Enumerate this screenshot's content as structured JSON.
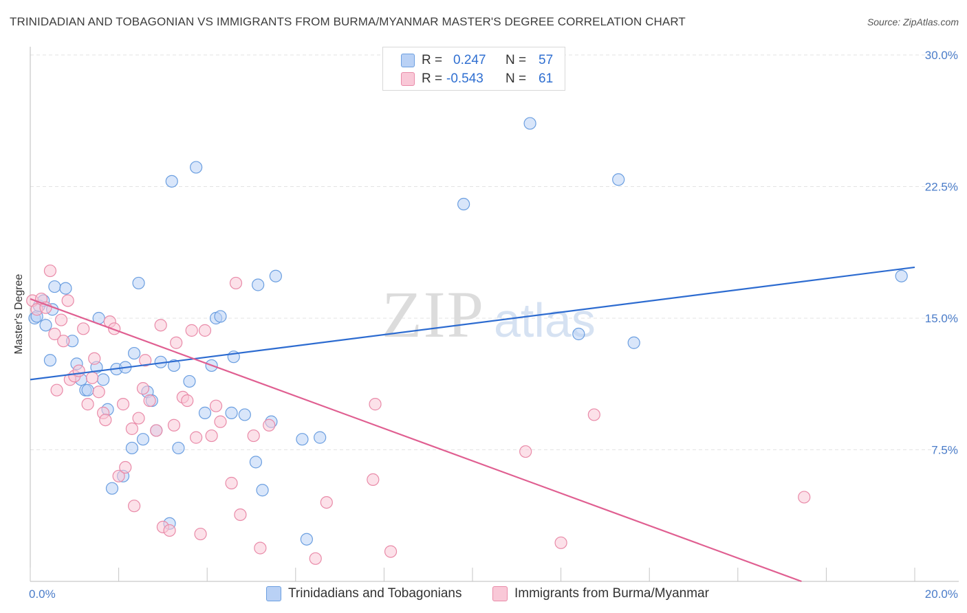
{
  "title": "TRINIDADIAN AND TOBAGONIAN VS IMMIGRANTS FROM BURMA/MYANMAR MASTER'S DEGREE CORRELATION CHART",
  "source": "Source: ZipAtlas.com",
  "watermark": "ZIPatlas",
  "legend": {
    "series1": {
      "r_label": "R =",
      "r_value": "0.247",
      "n_label": "N =",
      "n_value": "57"
    },
    "series2": {
      "r_label": "R =",
      "r_value": "-0.543",
      "n_label": "N =",
      "n_value": "61"
    }
  },
  "colors": {
    "blue_fill": "#b9d1f5",
    "blue_stroke": "#6a9ee0",
    "blue_line": "#2c6bd0",
    "pink_fill": "#f9c8d7",
    "pink_stroke": "#e98aa8",
    "pink_line": "#e05f91",
    "tick_text": "#4a7cc9"
  },
  "chart_data": {
    "type": "scatter",
    "xlabel": "",
    "ylabel": "Master's Degree",
    "xlim": [
      0,
      20
    ],
    "ylim": [
      0,
      30
    ],
    "x_tick_labels": [
      "0.0%",
      "20.0%"
    ],
    "y_ticks": [
      7.5,
      15.0,
      22.5,
      30.0
    ],
    "y_tick_labels": [
      "7.5%",
      "15.0%",
      "22.5%",
      "30.0%"
    ],
    "grid": true,
    "series": [
      {
        "name": "Trinidadians and Tobagonians",
        "color": "#b9d1f5",
        "trend": {
          "x": [
            0,
            20
          ],
          "y": [
            11.5,
            17.9
          ]
        },
        "points": [
          [
            0.1,
            15.0
          ],
          [
            0.15,
            15.1
          ],
          [
            0.2,
            15.7
          ],
          [
            0.3,
            16.0
          ],
          [
            0.35,
            14.6
          ],
          [
            0.45,
            12.6
          ],
          [
            0.55,
            16.8
          ],
          [
            0.8,
            16.7
          ],
          [
            0.95,
            13.7
          ],
          [
            1.05,
            12.4
          ],
          [
            1.15,
            11.5
          ],
          [
            1.25,
            10.9
          ],
          [
            1.3,
            10.9
          ],
          [
            1.5,
            12.2
          ],
          [
            1.55,
            15.0
          ],
          [
            1.65,
            11.5
          ],
          [
            1.75,
            9.8
          ],
          [
            1.85,
            5.3
          ],
          [
            1.95,
            12.1
          ],
          [
            2.1,
            6.0
          ],
          [
            2.15,
            12.2
          ],
          [
            2.3,
            7.6
          ],
          [
            2.35,
            13.0
          ],
          [
            2.45,
            17.0
          ],
          [
            2.55,
            8.1
          ],
          [
            2.65,
            10.8
          ],
          [
            2.75,
            10.3
          ],
          [
            2.85,
            8.6
          ],
          [
            2.95,
            12.5
          ],
          [
            3.15,
            3.3
          ],
          [
            3.2,
            22.8
          ],
          [
            3.25,
            12.3
          ],
          [
            3.35,
            7.6
          ],
          [
            3.6,
            11.4
          ],
          [
            3.75,
            23.6
          ],
          [
            3.95,
            9.6
          ],
          [
            4.1,
            12.3
          ],
          [
            4.2,
            15.0
          ],
          [
            4.3,
            15.1
          ],
          [
            4.55,
            9.6
          ],
          [
            4.6,
            12.8
          ],
          [
            4.85,
            9.5
          ],
          [
            5.1,
            6.8
          ],
          [
            5.15,
            16.9
          ],
          [
            5.25,
            5.2
          ],
          [
            5.45,
            9.1
          ],
          [
            5.55,
            17.4
          ],
          [
            6.15,
            8.1
          ],
          [
            6.25,
            2.4
          ],
          [
            6.55,
            8.2
          ],
          [
            9.8,
            21.5
          ],
          [
            11.3,
            26.1
          ],
          [
            12.4,
            14.1
          ],
          [
            13.3,
            22.9
          ],
          [
            13.65,
            13.6
          ],
          [
            19.7,
            17.4
          ],
          [
            0.5,
            15.5
          ]
        ]
      },
      {
        "name": "Immigrants from Burma/Myanmar",
        "color": "#f9c8d7",
        "trend": {
          "x": [
            0,
            17.44
          ],
          "y": [
            16.1,
            0.0
          ]
        },
        "points": [
          [
            0.05,
            16.0
          ],
          [
            0.15,
            15.5
          ],
          [
            0.25,
            16.1
          ],
          [
            0.35,
            15.6
          ],
          [
            0.45,
            17.7
          ],
          [
            0.55,
            14.1
          ],
          [
            0.6,
            10.9
          ],
          [
            0.7,
            14.9
          ],
          [
            0.75,
            13.7
          ],
          [
            0.85,
            16.0
          ],
          [
            0.9,
            11.5
          ],
          [
            1.0,
            11.7
          ],
          [
            1.1,
            12.0
          ],
          [
            1.2,
            14.4
          ],
          [
            1.3,
            10.1
          ],
          [
            1.4,
            11.6
          ],
          [
            1.45,
            12.7
          ],
          [
            1.55,
            10.8
          ],
          [
            1.65,
            9.6
          ],
          [
            1.7,
            9.2
          ],
          [
            1.8,
            14.8
          ],
          [
            1.9,
            14.4
          ],
          [
            2.0,
            6.0
          ],
          [
            2.1,
            10.1
          ],
          [
            2.15,
            6.5
          ],
          [
            2.3,
            8.7
          ],
          [
            2.35,
            4.3
          ],
          [
            2.45,
            9.3
          ],
          [
            2.55,
            11.0
          ],
          [
            2.6,
            12.6
          ],
          [
            2.7,
            10.3
          ],
          [
            2.85,
            8.6
          ],
          [
            2.95,
            14.6
          ],
          [
            3.0,
            3.1
          ],
          [
            3.15,
            2.9
          ],
          [
            3.25,
            8.9
          ],
          [
            3.3,
            13.6
          ],
          [
            3.45,
            10.5
          ],
          [
            3.55,
            10.3
          ],
          [
            3.65,
            14.3
          ],
          [
            3.75,
            8.2
          ],
          [
            3.85,
            2.7
          ],
          [
            3.95,
            14.3
          ],
          [
            4.1,
            8.3
          ],
          [
            4.2,
            10.0
          ],
          [
            4.3,
            9.1
          ],
          [
            4.55,
            5.6
          ],
          [
            4.65,
            17.0
          ],
          [
            4.75,
            3.8
          ],
          [
            5.05,
            8.3
          ],
          [
            5.2,
            1.9
          ],
          [
            5.4,
            8.9
          ],
          [
            6.45,
            1.3
          ],
          [
            6.7,
            4.5
          ],
          [
            7.75,
            5.8
          ],
          [
            7.8,
            10.1
          ],
          [
            8.15,
            1.7
          ],
          [
            11.2,
            7.4
          ],
          [
            12.0,
            2.2
          ],
          [
            12.75,
            9.5
          ],
          [
            17.5,
            4.8
          ]
        ]
      }
    ]
  },
  "bottom_legend": [
    "Trinidadians and Tobagonians",
    "Immigrants from Burma/Myanmar"
  ]
}
